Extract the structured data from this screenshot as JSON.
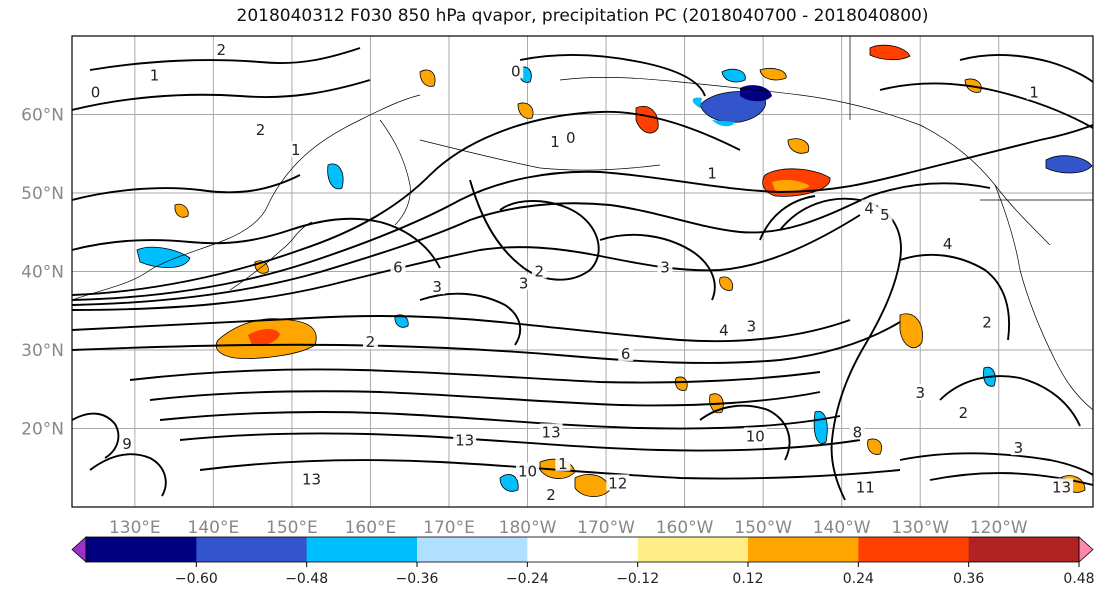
{
  "title": "2018040312 F030 850 hPa qvapor, precipitation PC (2018040700 - 2018040800)",
  "map": {
    "lat_range": [
      10,
      70
    ],
    "lon_range_east": [
      122,
      252
    ],
    "lat_ticks": [
      {
        "value": 20,
        "label": "20°N"
      },
      {
        "value": 30,
        "label": "30°N"
      },
      {
        "value": 40,
        "label": "40°N"
      },
      {
        "value": 50,
        "label": "50°N"
      },
      {
        "value": 60,
        "label": "60°N"
      }
    ],
    "lon_ticks": [
      {
        "value": 130,
        "label": "130°E"
      },
      {
        "value": 140,
        "label": "140°E"
      },
      {
        "value": 150,
        "label": "150°E"
      },
      {
        "value": 160,
        "label": "160°E"
      },
      {
        "value": 170,
        "label": "170°E"
      },
      {
        "value": 180,
        "label": "180°W"
      },
      {
        "value": 190,
        "label": "170°W"
      },
      {
        "value": 200,
        "label": "160°W"
      },
      {
        "value": 210,
        "label": "150°W"
      },
      {
        "value": 220,
        "label": "140°W"
      },
      {
        "value": 230,
        "label": "130°W"
      },
      {
        "value": 240,
        "label": "120°W"
      }
    ],
    "grid": true
  },
  "colorbar": {
    "orientation": "horizontal",
    "extend": "both",
    "colors": [
      "#9933cc",
      "#000080",
      "#3355cc",
      "#00bfff",
      "#b0e0ff",
      "#ffffff",
      "#ffee88",
      "#ffa500",
      "#ff4000",
      "#b22222",
      "#ff88aa"
    ],
    "boundaries": [
      -0.6,
      -0.48,
      -0.36,
      -0.24,
      -0.12,
      0.12,
      0.24,
      0.36,
      0.48,
      0.6
    ],
    "tick_labels": [
      "−0.60",
      "−0.48",
      "−0.36",
      "−0.24",
      "−0.12",
      "0.12",
      "0.24",
      "0.36",
      "0.48",
      "0.60"
    ]
  },
  "contour_labels": [
    {
      "text": "2",
      "lon": 141.0,
      "lat": 68.2
    },
    {
      "text": "1",
      "lon": 132.5,
      "lat": 65.0
    },
    {
      "text": "0",
      "lon": 125.0,
      "lat": 62.8
    },
    {
      "text": "2",
      "lon": 146.0,
      "lat": 58.0
    },
    {
      "text": "1",
      "lon": 150.5,
      "lat": 55.5
    },
    {
      "text": "0",
      "lon": 178.5,
      "lat": 65.5
    },
    {
      "text": "0",
      "lon": 185.5,
      "lat": 57.0
    },
    {
      "text": "1",
      "lon": 183.5,
      "lat": 56.5
    },
    {
      "text": "1",
      "lon": 203.5,
      "lat": 52.5
    },
    {
      "text": "4",
      "lon": 223.5,
      "lat": 48.0
    },
    {
      "text": "5",
      "lon": 225.5,
      "lat": 47.2
    },
    {
      "text": "4",
      "lon": 233.5,
      "lat": 43.5
    },
    {
      "text": "1",
      "lon": 244.5,
      "lat": 62.8
    },
    {
      "text": "6",
      "lon": 163.5,
      "lat": 40.5
    },
    {
      "text": "3",
      "lon": 168.5,
      "lat": 38.0
    },
    {
      "text": "2",
      "lon": 181.5,
      "lat": 40.0
    },
    {
      "text": "3",
      "lon": 179.5,
      "lat": 38.5
    },
    {
      "text": "3",
      "lon": 197.5,
      "lat": 40.5
    },
    {
      "text": "4",
      "lon": 205.0,
      "lat": 32.5
    },
    {
      "text": "3",
      "lon": 208.5,
      "lat": 33.0
    },
    {
      "text": "2",
      "lon": 160.0,
      "lat": 31.0
    },
    {
      "text": "6",
      "lon": 192.5,
      "lat": 29.5
    },
    {
      "text": "2",
      "lon": 238.5,
      "lat": 33.5
    },
    {
      "text": "2",
      "lon": 235.5,
      "lat": 22.0
    },
    {
      "text": "3",
      "lon": 230.0,
      "lat": 24.5
    },
    {
      "text": "8",
      "lon": 222.0,
      "lat": 19.5
    },
    {
      "text": "9",
      "lon": 129.0,
      "lat": 18.0
    },
    {
      "text": "13",
      "lon": 172.0,
      "lat": 18.5
    },
    {
      "text": "13",
      "lon": 183.0,
      "lat": 19.5
    },
    {
      "text": "10",
      "lon": 180.0,
      "lat": 14.5
    },
    {
      "text": "1",
      "lon": 184.5,
      "lat": 15.5
    },
    {
      "text": "2",
      "lon": 183.0,
      "lat": 11.5
    },
    {
      "text": "12",
      "lon": 191.5,
      "lat": 13.0
    },
    {
      "text": "13",
      "lon": 152.5,
      "lat": 13.5
    },
    {
      "text": "10",
      "lon": 209.0,
      "lat": 19.0
    },
    {
      "text": "11",
      "lon": 223.0,
      "lat": 12.5
    },
    {
      "text": "3",
      "lon": 242.5,
      "lat": 17.5
    },
    {
      "text": "13",
      "lon": 248.0,
      "lat": 12.5
    }
  ]
}
